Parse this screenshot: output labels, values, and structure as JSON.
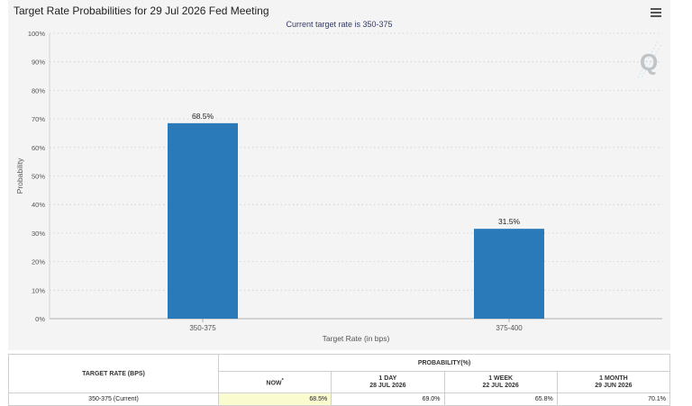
{
  "header": {
    "title": "Target Rate Probabilities for 29 Jul 2026 Fed Meeting",
    "subtitle": "Current target rate is 350-375",
    "menu_icon": "hamburger-menu-icon",
    "watermark_letter": "Q"
  },
  "chart_data": {
    "type": "bar",
    "categories": [
      "350-375",
      "375-400"
    ],
    "values": [
      68.5,
      31.5
    ],
    "data_labels": [
      "68.5%",
      "31.5%"
    ],
    "xlabel": "Target Rate (in bps)",
    "ylabel": "Probability",
    "ylim": [
      0,
      100
    ],
    "yticks": [
      "0%",
      "10%",
      "20%",
      "30%",
      "40%",
      "50%",
      "60%",
      "70%",
      "80%",
      "90%",
      "100%"
    ],
    "grid": true,
    "bar_color": "#2a7ab9"
  },
  "table": {
    "rate_header": "TARGET RATE (BPS)",
    "prob_header": "PROBABILITY(%)",
    "columns": [
      {
        "label": "NOW",
        "marker": "*",
        "date": ""
      },
      {
        "label": "1 DAY",
        "date": "28 JUL 2026"
      },
      {
        "label": "1 WEEK",
        "date": "22 JUL 2026"
      },
      {
        "label": "1 MONTH",
        "date": "29 JUN 2026"
      }
    ],
    "rows": [
      {
        "rate": "350-375 (Current)",
        "values": [
          "68.5%",
          "69.0%",
          "65.8%",
          "70.1%"
        ]
      }
    ]
  }
}
